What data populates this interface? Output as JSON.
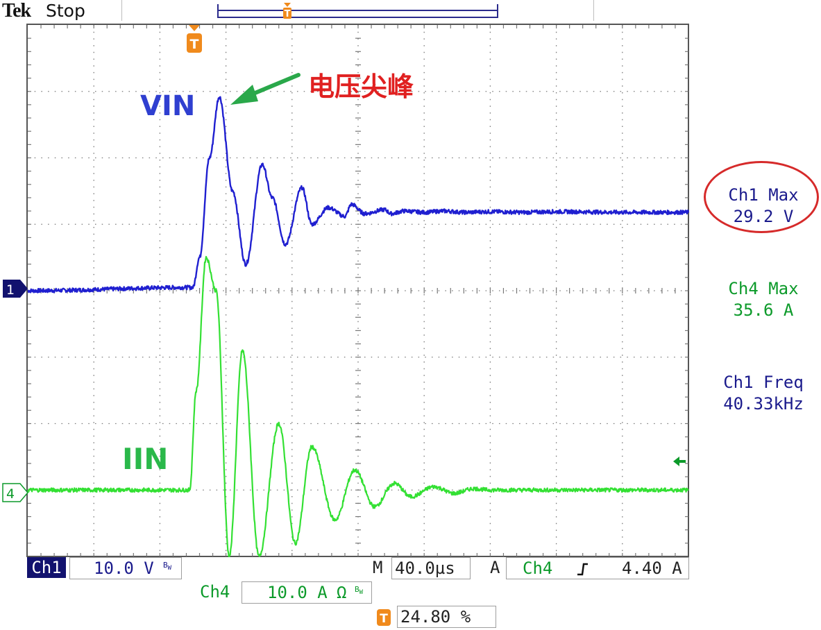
{
  "header": {
    "brand": "Tek",
    "run_state": "Stop"
  },
  "annotations": {
    "vin_label": "VIN",
    "iin_label": "IIN",
    "spike_label": "电压尖峰"
  },
  "measurements": [
    {
      "name": "Ch1 Max",
      "value": "29.2 V",
      "color": "#1a1a8c"
    },
    {
      "name": "Ch4 Max",
      "value": "35.6 A",
      "color": "#0c9a2a"
    },
    {
      "name": "Ch1 Freq",
      "value": "40.33kHz",
      "color": "#1a1a8c"
    }
  ],
  "channel_markers": {
    "ch1": "1",
    "ch4": "4",
    "trigger": "T"
  },
  "status_bar": {
    "ch1_label": "Ch1",
    "ch1_scale": "10.0 V",
    "bw": "B",
    "bw_sub": "W",
    "timebase_prefix": "M",
    "timebase": "40.0µs",
    "trigger_mode": "A",
    "trigger_source": "Ch4",
    "trigger_slope": "ノ",
    "trigger_level": "4.40 A",
    "ch4_label": "Ch4",
    "ch4_scale": "10.0 A",
    "ch4_coupling": "Ω",
    "trigger_position": "24.80 %"
  },
  "colors": {
    "ch1": "#1f1fd0",
    "ch4": "#33e033",
    "grid": "#777777",
    "trigger": "#f08a1c",
    "highlight_circle": "#d62a2a",
    "arrow": "#2aa84a",
    "spike_text": "#e02020",
    "ch1_badge_bg": "#12126e"
  },
  "chart_data": {
    "type": "line",
    "title": "",
    "xlabel": "",
    "ylabel": "",
    "x_divisions": 10,
    "y_divisions": 8,
    "x_units_per_div": "40.0µs",
    "xlim": [
      0,
      10
    ],
    "ylim": [
      -4,
      4
    ],
    "grid": true,
    "series": [
      {
        "name": "VIN",
        "channel": "Ch1",
        "scale": "10.0 V/div",
        "baseline_div": 0,
        "color": "#1f1fd0",
        "x": [
          0.0,
          2.5,
          2.6,
          2.75,
          2.9,
          3.1,
          3.3,
          3.55,
          3.7,
          3.9,
          4.15,
          4.3,
          4.55,
          4.8,
          4.9,
          5.1,
          5.4,
          5.5,
          5.7,
          6.0,
          6.3,
          6.6,
          7.0,
          7.5,
          8.0,
          9.0,
          10.0
        ],
        "y": [
          0.0,
          0.05,
          0.5,
          2.0,
          2.92,
          1.5,
          0.4,
          1.9,
          1.4,
          0.7,
          1.55,
          1.0,
          1.25,
          1.12,
          1.3,
          1.16,
          1.22,
          1.16,
          1.2,
          1.18,
          1.2,
          1.18,
          1.19,
          1.18,
          1.19,
          1.18,
          1.18
        ]
      },
      {
        "name": "IIN",
        "channel": "Ch4",
        "scale": "10.0 A/div",
        "baseline_div": -3,
        "color": "#33e033",
        "x": [
          0.0,
          2.45,
          2.55,
          2.7,
          2.85,
          3.05,
          3.25,
          3.5,
          3.8,
          4.05,
          4.3,
          4.65,
          4.95,
          5.25,
          5.55,
          5.8,
          6.15,
          6.45,
          6.75,
          7.0,
          7.5,
          8.0,
          9.0,
          10.0
        ],
        "y": [
          -3.0,
          -3.0,
          -1.5,
          0.5,
          0.0,
          -4.0,
          -0.9,
          -4.0,
          -2.0,
          -3.8,
          -2.35,
          -3.45,
          -2.7,
          -3.25,
          -2.9,
          -3.1,
          -2.95,
          -3.05,
          -2.98,
          -3.0,
          -3.0,
          -3.0,
          -3.0,
          -3.0
        ]
      }
    ]
  }
}
